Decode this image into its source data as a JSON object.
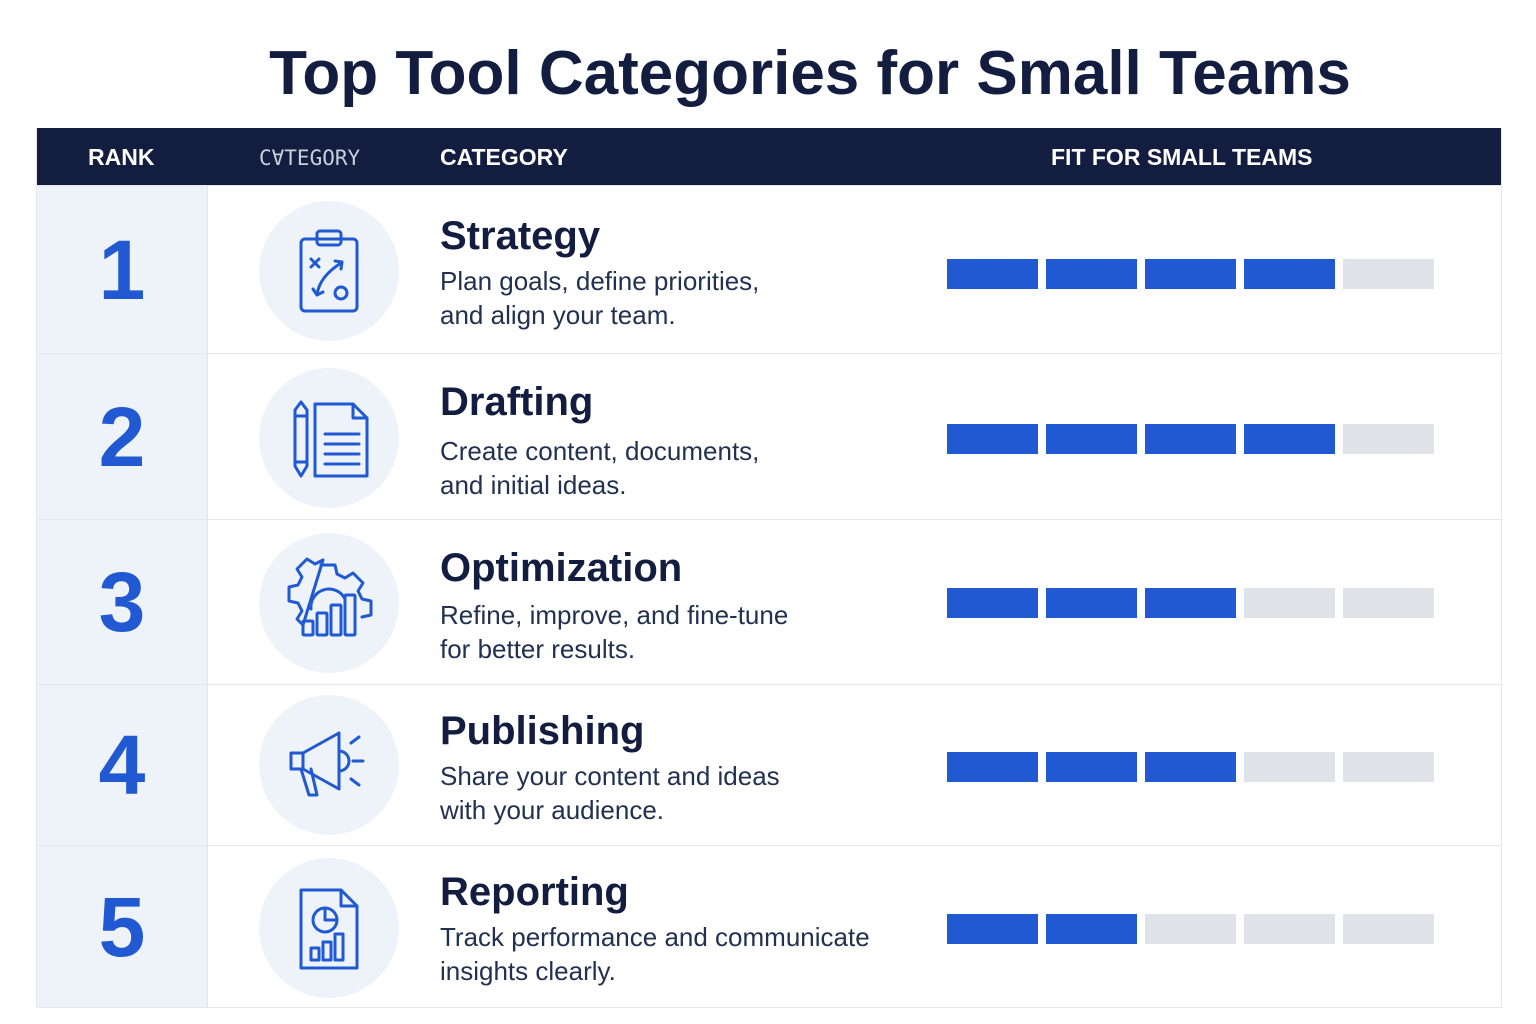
{
  "title": "Top Tool Categories for Small Teams",
  "header": {
    "rank": "RANK",
    "category_icon": "CⱯTEGORY",
    "category": "CATEGORY",
    "fit": "FIT FOR SMALL TEAMS"
  },
  "colors": {
    "accent": "#2059d1",
    "header_bg": "#121d3f",
    "empty_segment": "#dfe2e6"
  },
  "fit_scale_max": 5,
  "rows": [
    {
      "rank": "1",
      "icon": "clipboard-strategy-icon",
      "name": "Strategy",
      "desc_line1": "Plan goals, define priorities,",
      "desc_line2": "and align your team.",
      "fit": 4
    },
    {
      "rank": "2",
      "icon": "document-pencil-icon",
      "name": "Drafting",
      "desc_line1": "Create content, documents,",
      "desc_line2": "and initial ideas.",
      "fit": 4
    },
    {
      "rank": "3",
      "icon": "gear-chart-icon",
      "name": "Optimization",
      "desc_line1": "Refine, improve, and fine-tune",
      "desc_line2": "for better results.",
      "fit": 3
    },
    {
      "rank": "4",
      "icon": "megaphone-icon",
      "name": "Publishing",
      "desc_line1": "Share your content and ideas",
      "desc_line2": "with your audience.",
      "fit": 3
    },
    {
      "rank": "5",
      "icon": "report-document-icon",
      "name": "Reporting",
      "desc_line1": "Track performance and communicate",
      "desc_line2": "insights clearly.",
      "fit": 2
    }
  ]
}
